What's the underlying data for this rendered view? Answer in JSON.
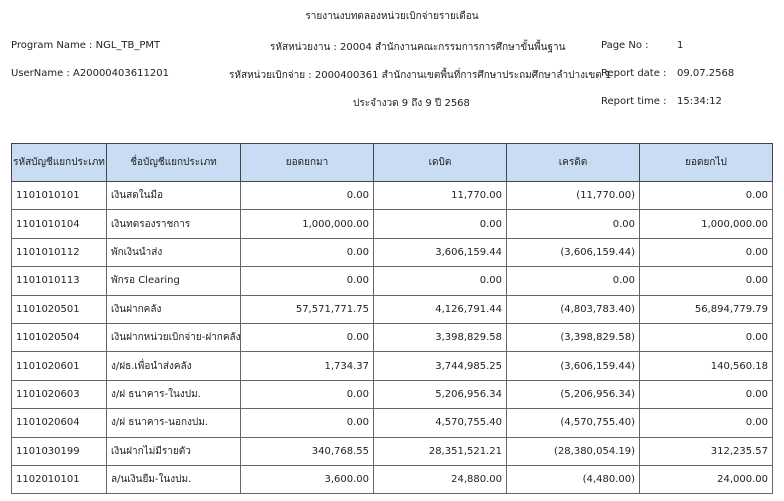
{
  "header": {
    "title": "รายงานงบทดลองหน่วยเบิกจ่ายรายเดือน",
    "program_name": "Program Name : NGL_TB_PMT",
    "agency": "รหัสหน่วยงาน : 20004 สำนักงานคณะกรรมการการศึกษาขั้นพื้นฐาน",
    "page_label": "Page No :",
    "page_no": "1",
    "user_name": "UserName : A20000403611201",
    "disbursing_unit": "รหัสหน่วยเบิกจ่าย : 2000400361 สำนักงานเขตพื้นที่การศึกษาประถมศึกษาลำปางเขต 1",
    "report_date_label": "Report date :",
    "report_date": "09.07.2568",
    "period": "ประจำงวด 9 ถึง 9 ปี 2568",
    "report_time_label": "Report time :",
    "report_time": "15:34:12"
  },
  "table": {
    "columns": [
      "รหัสบัญชีแยกประเภท",
      "ชื่อบัญชีแยกประเภท",
      "ยอดยกมา",
      "เดบิต",
      "เครดิต",
      "ยอดยกไป"
    ],
    "rows": [
      [
        "1101010101",
        "เงินสดในมือ",
        "0.00",
        "11,770.00",
        "(11,770.00)",
        "0.00"
      ],
      [
        "1101010104",
        "เงินทดรองราชการ",
        "1,000,000.00",
        "0.00",
        "0.00",
        "1,000,000.00"
      ],
      [
        "1101010112",
        "พักเงินนำส่ง",
        "0.00",
        "3,606,159.44",
        "(3,606,159.44)",
        "0.00"
      ],
      [
        "1101010113",
        "พักรอ Clearing",
        "0.00",
        "0.00",
        "0.00",
        "0.00"
      ],
      [
        "1101020501",
        "เงินฝากคลัง",
        "57,571,771.75",
        "4,126,791.44",
        "(4,803,783.40)",
        "56,894,779.79"
      ],
      [
        "1101020504",
        "เงินฝากหน่วยเบิกจ่าย-ฝากคลัง",
        "0.00",
        "3,398,829.58",
        "(3,398,829.58)",
        "0.00"
      ],
      [
        "1101020601",
        "ง/ฝธ.เพื่อนำส่งคลัง",
        "1,734.37",
        "3,744,985.25",
        "(3,606,159.44)",
        "140,560.18"
      ],
      [
        "1101020603",
        "ง/ฝ ธนาคาร-ในงปม.",
        "0.00",
        "5,206,956.34",
        "(5,206,956.34)",
        "0.00"
      ],
      [
        "1101020604",
        "ง/ฝ ธนาคาร-นอกงปม.",
        "0.00",
        "4,570,755.40",
        "(4,570,755.40)",
        "0.00"
      ],
      [
        "1101030199",
        "เงินฝากไม่มีรายตัว",
        "340,768.55",
        "28,351,521.21",
        "(28,380,054.19)",
        "312,235.57"
      ],
      [
        "1102010101",
        "ล/นเงินยืม-ในงปม.",
        "3,600.00",
        "24,880.00",
        "(4,480.00)",
        "24,000.00"
      ]
    ]
  }
}
